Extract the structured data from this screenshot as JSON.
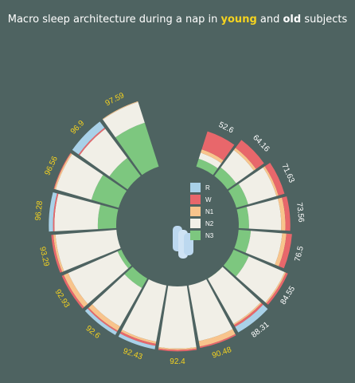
{
  "chart_data": {
    "type": "radial-stacked-bar",
    "title": {
      "prefix": "Macro sleep architecture during a nap in ",
      "group1": "young",
      "middle": " and ",
      "group2": "old",
      "suffix": " subjects"
    },
    "stages": [
      {
        "name": "R",
        "color": "#a9d1e8"
      },
      {
        "name": "W",
        "color": "#e8676b"
      },
      {
        "name": "N1",
        "color": "#f8c48c"
      },
      {
        "name": "N2",
        "color": "#f1efe7"
      },
      {
        "name": "N3",
        "color": "#7dc77f"
      }
    ],
    "groups": [
      {
        "name": "old",
        "label_color": "#ffffff"
      },
      {
        "name": "young",
        "label_color": "#f5d31f"
      }
    ],
    "subjects": [
      {
        "label": "52.6",
        "group": "old",
        "R": 0,
        "W": 27,
        "N1": 5,
        "N2": 9,
        "N3": 11.6
      },
      {
        "label": "64.16",
        "group": "old",
        "R": 0,
        "W": 14,
        "N1": 4,
        "N2": 31,
        "N3": 15.16
      },
      {
        "label": "71.63",
        "group": "old",
        "R": 0,
        "W": 9,
        "N1": 3,
        "N2": 42,
        "N3": 17.63
      },
      {
        "label": "73.56",
        "group": "old",
        "R": 0,
        "W": 7,
        "N1": 6,
        "N2": 46,
        "N3": 14.56
      },
      {
        "label": "76.5",
        "group": "old",
        "R": 0,
        "W": 8,
        "N1": 6,
        "N2": 45,
        "N3": 17.5
      },
      {
        "label": "84.55",
        "group": "old",
        "R": 0,
        "W": 3,
        "N1": 2,
        "N2": 56,
        "N3": 23.55
      },
      {
        "label": "88.31",
        "group": "old",
        "R": 9,
        "W": 3,
        "N1": 2,
        "N2": 74,
        "N3": 0.31
      },
      {
        "label": "90.48",
        "group": "young",
        "R": 0,
        "W": 2,
        "N1": 8,
        "N2": 80.48,
        "N3": 0
      },
      {
        "label": "92.4",
        "group": "young",
        "R": 0,
        "W": 2,
        "N1": 2,
        "N2": 88.4,
        "N3": 0
      },
      {
        "label": "92.43",
        "group": "young",
        "R": 5,
        "W": 3,
        "N1": 3,
        "N2": 81.43,
        "N3": 0
      },
      {
        "label": "92.6",
        "group": "young",
        "R": 5,
        "W": 2,
        "N1": 7,
        "N2": 63,
        "N3": 15.6
      },
      {
        "label": "92.93",
        "group": "young",
        "R": 0,
        "W": 3,
        "N1": 7,
        "N2": 77,
        "N3": 5.93
      },
      {
        "label": "93.29",
        "group": "young",
        "R": 0,
        "W": 3,
        "N1": 3,
        "N2": 87.29,
        "N3": 0
      },
      {
        "label": "96.28",
        "group": "young",
        "R": 6,
        "W": 2,
        "N1": 0,
        "N2": 62,
        "N3": 26.28
      },
      {
        "label": "96.56",
        "group": "young",
        "R": 0,
        "W": 1,
        "N1": 2,
        "N2": 53,
        "N3": 40.56
      },
      {
        "label": "96.9",
        "group": "young",
        "R": 11,
        "W": 2,
        "N1": 0,
        "N2": 52,
        "N3": 31.9
      },
      {
        "label": "97.59",
        "group": "young",
        "R": 0,
        "W": 0,
        "N1": 1,
        "N2": 31,
        "N3": 65.59
      }
    ],
    "value_max": 100,
    "legend_position": "center",
    "grid": false
  }
}
